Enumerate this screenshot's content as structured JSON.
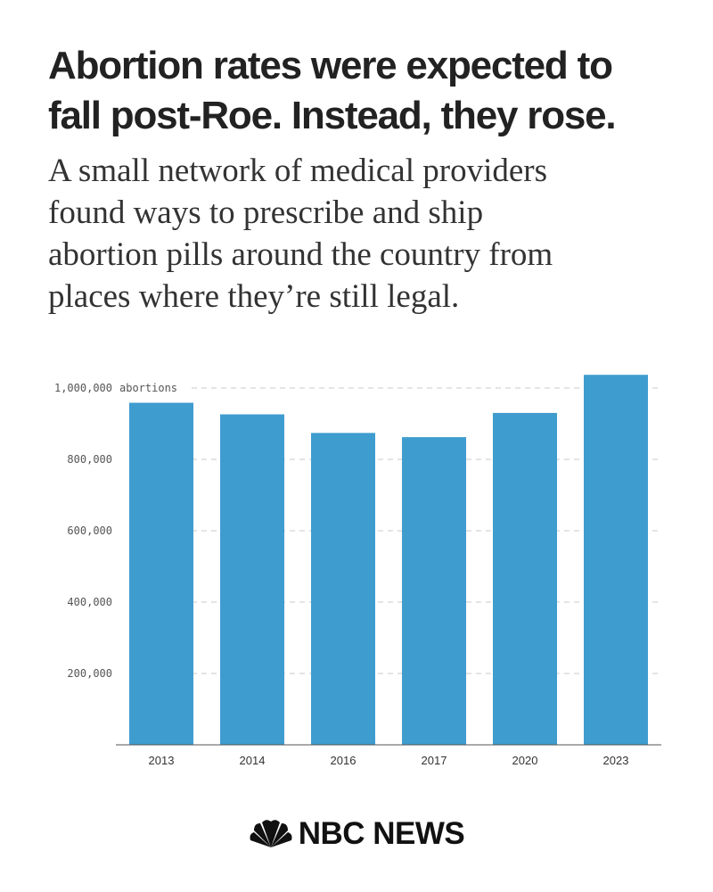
{
  "headline": {
    "line1": "Abortion rates were expected to",
    "line2": "fall post-Roe. Instead, they rose."
  },
  "subhead": {
    "line1": "A small network of medical providers",
    "line2": "found ways to prescribe and ship",
    "line3": "abortion pills around the country from",
    "line4": "places where they’re still legal."
  },
  "chart_data": {
    "type": "bar",
    "categories": [
      "2013",
      "2014",
      "2016",
      "2017",
      "2020",
      "2023"
    ],
    "values": [
      958700,
      926200,
      874100,
      862300,
      930200,
      1037000
    ],
    "y_ticks": [
      200000,
      400000,
      600000,
      800000,
      1000000
    ],
    "y_tick_labels": [
      "200,000",
      "400,000",
      "600,000",
      "800,000",
      "1,000,000"
    ],
    "y_unit_label": "abortions",
    "ylim": [
      0,
      1000000
    ],
    "grid": "horizontal dashed",
    "bar_color": "#3f9ccf"
  },
  "brand": {
    "icon": "peacock-icon",
    "name": "NBC NEWS"
  }
}
